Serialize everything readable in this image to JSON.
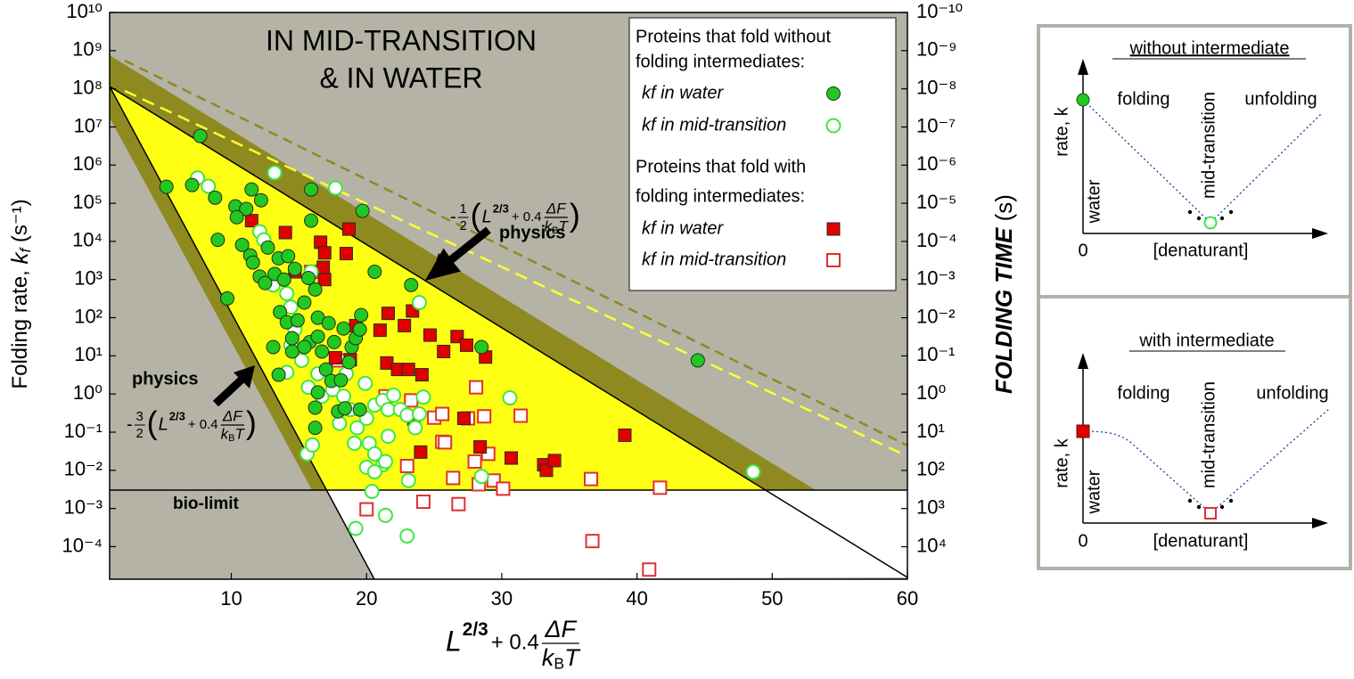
{
  "chart_data": {
    "type": "scatter",
    "title": [
      "IN MID-TRANSITION",
      "&  IN WATER"
    ],
    "ylabel": [
      "Folding rate, ",
      "k",
      "f",
      " (s⁻¹)"
    ],
    "y2label": [
      "FOLDING TIME",
      " (s)"
    ],
    "xlabel": {
      "base": "L",
      "exp": "2/3",
      "plus": "+ 0.4",
      "fnum": "ΔF",
      "k": "k",
      "sub": "B",
      "T": "T"
    },
    "log_y": true,
    "xlim": [
      1,
      60
    ],
    "xticks": [
      10,
      20,
      30,
      40,
      50,
      60
    ],
    "ylim": [
      1.4e-05,
      10000000000.0
    ],
    "yticks": [
      {
        "value": 10000000000.0,
        "label": "10¹⁰"
      },
      {
        "value": 1000000000.0,
        "label": "10⁹"
      },
      {
        "value": 100000000.0,
        "label": "10⁸"
      },
      {
        "value": 10000000.0,
        "label": "10⁷"
      },
      {
        "value": 1000000.0,
        "label": "10⁶"
      },
      {
        "value": 100000.0,
        "label": "10⁵"
      },
      {
        "value": 10000.0,
        "label": "10⁴"
      },
      {
        "value": 1000.0,
        "label": "10³"
      },
      {
        "value": 100,
        "label": "10²"
      },
      {
        "value": 10,
        "label": "10¹"
      },
      {
        "value": 1,
        "label": "10⁰"
      },
      {
        "value": 0.1,
        "label": "10⁻¹"
      },
      {
        "value": 0.01,
        "label": "10⁻²"
      },
      {
        "value": 0.001,
        "label": "10⁻³"
      },
      {
        "value": 0.0001,
        "label": "10⁻⁴"
      }
    ],
    "y2lim": [
      71000.0,
      1e-10
    ],
    "y2ticks": [
      {
        "value": 1e-10,
        "label": "10⁻¹⁰"
      },
      {
        "value": 1e-09,
        "label": "10⁻⁹"
      },
      {
        "value": 1e-08,
        "label": "10⁻⁸"
      },
      {
        "value": 1e-07,
        "label": "10⁻⁷"
      },
      {
        "value": 1e-06,
        "label": "10⁻⁶"
      },
      {
        "value": 1e-05,
        "label": "10⁻⁵"
      },
      {
        "value": 0.0001,
        "label": "10⁻⁴"
      },
      {
        "value": 0.001,
        "label": "10⁻³"
      },
      {
        "value": 0.01,
        "label": "10⁻²"
      },
      {
        "value": 0.1,
        "label": "10⁻¹"
      },
      {
        "value": 1,
        "label": "10⁰"
      },
      {
        "value": 10,
        "label": "10¹"
      },
      {
        "value": 100,
        "label": "10²"
      },
      {
        "value": 1000,
        "label": "10³"
      },
      {
        "value": 10000,
        "label": "10⁴"
      }
    ],
    "legend_titles": [
      [
        "Proteins that fold without",
        "folding intermediates:"
      ],
      [
        "Proteins that fold with",
        "folding intermediates:"
      ]
    ],
    "annotations": {
      "physics_top": "physics",
      "physics_bottom": "physics",
      "bio_limit": "bio-limit"
    },
    "formula_top": {
      "sign": "-",
      "num": "1",
      "den": "2",
      "open": "(",
      "base": "L",
      "exp": "2/3",
      "plus": "+ 0.4",
      "fnum": "ΔF",
      "k": "k",
      "sub": "B",
      "T": "T",
      "close": ")"
    },
    "formula_bottom": {
      "sign": "-",
      "num": "3",
      "den": "2",
      "open": "(",
      "base": "L",
      "exp": "2/3",
      "plus": "+ 0.4",
      "fnum": "ΔF",
      "k": "k",
      "sub": "B",
      "T": "T",
      "close": ")"
    },
    "series": [
      {
        "name": "kf in water",
        "color": "#22c822",
        "marker": "circle",
        "filled": true,
        "x": [
          7.7,
          5.2,
          7.1,
          8.8,
          11.5,
          12.2,
          10.3,
          11.1,
          10.4,
          9.0,
          10.8,
          11.4,
          12.7,
          13.5,
          14.2,
          11.6,
          12.1,
          12.5,
          13.2,
          13.9,
          14.7,
          15.7,
          16.2,
          15.4,
          13.6,
          14.1,
          14.9,
          16.4,
          17.2,
          14.5,
          15.8,
          16.4,
          13.1,
          14.5,
          15.4,
          16.7,
          17.6,
          18.3,
          18.9,
          19.2,
          19.6,
          19.5,
          18.7,
          17.0,
          17.4,
          16.4,
          18.1,
          16.2,
          17.9,
          18.4,
          19.5,
          16.2,
          13.5,
          9.7,
          15.9,
          19.7,
          15.9,
          20.6,
          23.3,
          28.5,
          44.5
        ],
        "y": [
          5800000.0,
          270000.0,
          300000.0,
          140000.0,
          230000.0,
          120000.0,
          83000.0,
          71000.0,
          43000.0,
          11000.0,
          8100.0,
          4300.0,
          6900.0,
          3600.0,
          4100.0,
          2800.0,
          1200.0,
          810.0,
          1400.0,
          1000.0,
          1900.0,
          1100.0,
          550.0,
          250.0,
          140.0,
          76,
          85,
          100,
          72,
          29,
          23,
          32,
          17,
          13,
          17,
          13,
          23,
          52,
          17,
          29,
          117,
          49,
          6.8,
          4.4,
          2.2,
          1.1,
          2.3,
          0.44,
          0.35,
          0.42,
          0.39,
          0.13,
          3.2,
          320,
          35000.0,
          63000.0,
          230000.0,
          1600.0,
          720,
          17,
          7.6
        ]
      },
      {
        "name": "kf in mid-transition",
        "color": "#3ee83e",
        "marker": "circle",
        "filled": false,
        "x": [
          7.5,
          8.3,
          13.2,
          17.7,
          12.1,
          12.4,
          15.9,
          13.1,
          14.1,
          14.4,
          14.7,
          14.4,
          15.2,
          14.1,
          15.7,
          16.4,
          16.7,
          17.5,
          18.3,
          18.8,
          18.0,
          19.3,
          20.0,
          20.6,
          21.2,
          21.6,
          22.0,
          22.5,
          23.0,
          20.2,
          20.6,
          21.2,
          20.0,
          20.6,
          21.4,
          21.6,
          20.4,
          21.4,
          23.0,
          19.2,
          23.1,
          23.9,
          24.2,
          23.6,
          28.5,
          30.6,
          48.6,
          15.6,
          16.0,
          18.5,
          19.9,
          19.1,
          23.9
        ],
        "y": [
          460000.0,
          280000.0,
          630000.0,
          250000.0,
          18000.0,
          11000.0,
          1600.0,
          720,
          430,
          190,
          49,
          19,
          7.6,
          3.7,
          1.5,
          3.4,
          0.87,
          1.3,
          0.87,
          0.39,
          0.17,
          0.13,
          0.23,
          0.51,
          0.68,
          0.39,
          0.93,
          0.39,
          0.28,
          0.051,
          0.027,
          0.014,
          0.012,
          0.0091,
          0.017,
          0.078,
          0.0028,
          0.00066,
          0.00019,
          0.0003,
          0.0054,
          0.3,
          0.83,
          0.13,
          0.0069,
          0.79,
          0.0091,
          0.027,
          0.046,
          3.4,
          1.9,
          0.051,
          250
        ]
      },
      {
        "name": "kf in water",
        "color": "#e00000",
        "marker": "square",
        "filled": true,
        "x": [
          11.5,
          14.0,
          16.6,
          16.9,
          18.7,
          16.8,
          18.5,
          16.9,
          21.6,
          23.4,
          19.2,
          22.8,
          24.7,
          21.0,
          17.7,
          18.8,
          21.5,
          22.3,
          23.1,
          24.1,
          26.7,
          27.4,
          28.8,
          25.7,
          27.2,
          23.5,
          24.0,
          28.4,
          30.7,
          33.1,
          33.3,
          33.9,
          39.1,
          14.7
        ],
        "y": [
          35000.0,
          17000.0,
          9500.0,
          5000.0,
          21000.0,
          2100.0,
          4800.0,
          1000.0,
          130,
          150,
          62,
          62,
          35,
          47,
          8.9,
          7.9,
          6.5,
          4.4,
          4.4,
          3.2,
          32,
          19,
          9.3,
          13,
          0.23,
          0.22,
          0.03,
          0.041,
          0.021,
          0.014,
          0.01,
          0.018,
          0.083,
          1600.0
        ]
      },
      {
        "name": "kf in mid-transition",
        "color": "#e03030",
        "marker": "square",
        "filled": false,
        "x": [
          15.9,
          17.9,
          21.4,
          23.3,
          25.0,
          25.6,
          25.6,
          27.5,
          28.7,
          31.4,
          28.1,
          25.8,
          23.0,
          26.4,
          28.0,
          29.0,
          29.4,
          28.3,
          30.1,
          36.6,
          41.7,
          20.0,
          24.2,
          26.8,
          36.7,
          40.9
        ],
        "y": [
          1600.0,
          7.6,
          0.87,
          0.68,
          0.24,
          0.3,
          0.056,
          0.23,
          0.26,
          0.27,
          1.5,
          0.054,
          0.013,
          0.0063,
          0.017,
          0.027,
          0.0054,
          0.0043,
          0.0033,
          0.0059,
          0.0035,
          0.00095,
          0.0015,
          0.0013,
          0.00014,
          2.5e-05
        ]
      }
    ]
  },
  "insets": [
    {
      "title": "without intermediate",
      "ylabel": "rate, k",
      "left": "folding",
      "middle": "mid-transition",
      "right": "unfolding",
      "corner": "water",
      "origin": "0",
      "xlabel": "[denaturant]"
    },
    {
      "title": "with intermediate",
      "ylabel": "rate, k",
      "left": "folding",
      "middle": "mid-transition",
      "right": "unfolding",
      "corner": "water",
      "origin": "0",
      "xlabel": "[denaturant]"
    }
  ]
}
